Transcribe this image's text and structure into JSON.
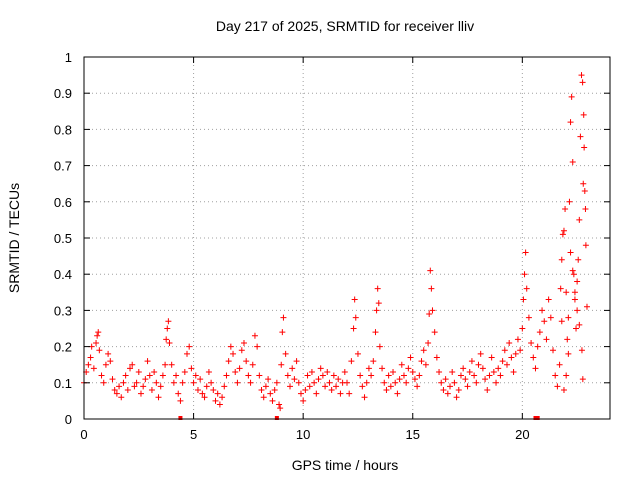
{
  "chart_data": {
    "type": "scatter",
    "title": "Day 217 of 2025, SRMTID for receiver lliv",
    "xlabel": "GPS time / hours",
    "ylabel": "SRMTID / TECUs",
    "xlim": [
      0,
      24
    ],
    "ylim": [
      0,
      1
    ],
    "x_ticks": [
      0,
      5,
      10,
      15,
      20
    ],
    "x_tick_labels": [
      "0",
      "5",
      "10",
      "15",
      "20"
    ],
    "y_ticks": [
      0,
      0.1,
      0.2,
      0.3,
      0.4,
      0.5,
      0.6,
      0.7,
      0.8,
      0.9,
      1
    ],
    "y_tick_labels": [
      "0",
      "0.1",
      "0.2",
      "0.3",
      "0.4",
      "0.5",
      "0.6",
      "0.7",
      "0.8",
      "0.9",
      "1"
    ],
    "grid": true,
    "marker": "+",
    "color": "#ff0000",
    "series": [
      {
        "name": "SRMTID",
        "points": [
          [
            0.0,
            0.1
          ],
          [
            0.1,
            0.13
          ],
          [
            0.2,
            0.15
          ],
          [
            0.3,
            0.17
          ],
          [
            0.35,
            0.2
          ],
          [
            0.45,
            0.14
          ],
          [
            0.55,
            0.21
          ],
          [
            0.6,
            0.23
          ],
          [
            0.65,
            0.24
          ],
          [
            0.7,
            0.19
          ],
          [
            0.8,
            0.12
          ],
          [
            0.9,
            0.1
          ],
          [
            1.0,
            0.15
          ],
          [
            1.1,
            0.18
          ],
          [
            1.2,
            0.16
          ],
          [
            1.3,
            0.11
          ],
          [
            1.4,
            0.08
          ],
          [
            1.5,
            0.07
          ],
          [
            1.6,
            0.09
          ],
          [
            1.7,
            0.06
          ],
          [
            1.8,
            0.1
          ],
          [
            1.9,
            0.12
          ],
          [
            2.0,
            0.08
          ],
          [
            2.1,
            0.14
          ],
          [
            2.2,
            0.15
          ],
          [
            2.3,
            0.09
          ],
          [
            2.4,
            0.1
          ],
          [
            2.5,
            0.13
          ],
          [
            2.6,
            0.07
          ],
          [
            2.7,
            0.09
          ],
          [
            2.8,
            0.11
          ],
          [
            2.9,
            0.16
          ],
          [
            3.0,
            0.12
          ],
          [
            3.1,
            0.08
          ],
          [
            3.2,
            0.13
          ],
          [
            3.3,
            0.1
          ],
          [
            3.4,
            0.06
          ],
          [
            3.5,
            0.09
          ],
          [
            3.6,
            0.12
          ],
          [
            3.7,
            0.15
          ],
          [
            3.75,
            0.22
          ],
          [
            3.8,
            0.25
          ],
          [
            3.85,
            0.27
          ],
          [
            3.9,
            0.21
          ],
          [
            4.0,
            0.15
          ],
          [
            4.1,
            0.1
          ],
          [
            4.2,
            0.12
          ],
          [
            4.3,
            0.07
          ],
          [
            4.4,
            0.05
          ],
          [
            4.5,
            0.1
          ],
          [
            4.6,
            0.13
          ],
          [
            4.7,
            0.18
          ],
          [
            4.8,
            0.2
          ],
          [
            4.9,
            0.14
          ],
          [
            5.0,
            0.1
          ],
          [
            5.1,
            0.12
          ],
          [
            5.2,
            0.08
          ],
          [
            5.3,
            0.11
          ],
          [
            5.4,
            0.07
          ],
          [
            5.5,
            0.06
          ],
          [
            5.6,
            0.09
          ],
          [
            5.7,
            0.13
          ],
          [
            5.8,
            0.1
          ],
          [
            5.9,
            0.08
          ],
          [
            6.0,
            0.05
          ],
          [
            6.1,
            0.07
          ],
          [
            6.2,
            0.04
          ],
          [
            6.3,
            0.06
          ],
          [
            6.4,
            0.09
          ],
          [
            6.5,
            0.12
          ],
          [
            6.6,
            0.16
          ],
          [
            6.7,
            0.2
          ],
          [
            6.8,
            0.18
          ],
          [
            6.9,
            0.13
          ],
          [
            7.0,
            0.1
          ],
          [
            7.1,
            0.14
          ],
          [
            7.2,
            0.19
          ],
          [
            7.3,
            0.21
          ],
          [
            7.4,
            0.16
          ],
          [
            7.5,
            0.12
          ],
          [
            7.6,
            0.1
          ],
          [
            7.7,
            0.15
          ],
          [
            7.8,
            0.23
          ],
          [
            7.9,
            0.2
          ],
          [
            8.0,
            0.12
          ],
          [
            8.1,
            0.08
          ],
          [
            8.2,
            0.06
          ],
          [
            8.3,
            0.09
          ],
          [
            8.4,
            0.11
          ],
          [
            8.5,
            0.07
          ],
          [
            8.6,
            0.05
          ],
          [
            8.7,
            0.08
          ],
          [
            8.8,
            0.1
          ],
          [
            8.9,
            0.04
          ],
          [
            8.95,
            0.03
          ],
          [
            9.0,
            0.15
          ],
          [
            9.05,
            0.24
          ],
          [
            9.1,
            0.28
          ],
          [
            9.2,
            0.18
          ],
          [
            9.3,
            0.12
          ],
          [
            9.4,
            0.09
          ],
          [
            9.5,
            0.14
          ],
          [
            9.6,
            0.11
          ],
          [
            9.7,
            0.16
          ],
          [
            9.8,
            0.1
          ],
          [
            9.9,
            0.07
          ],
          [
            10.0,
            0.05
          ],
          [
            10.1,
            0.08
          ],
          [
            10.2,
            0.12
          ],
          [
            10.3,
            0.09
          ],
          [
            10.4,
            0.13
          ],
          [
            10.5,
            0.1
          ],
          [
            10.6,
            0.07
          ],
          [
            10.7,
            0.11
          ],
          [
            10.8,
            0.14
          ],
          [
            10.9,
            0.12
          ],
          [
            11.0,
            0.09
          ],
          [
            11.1,
            0.13
          ],
          [
            11.2,
            0.1
          ],
          [
            11.3,
            0.08
          ],
          [
            11.4,
            0.12
          ],
          [
            11.5,
            0.09
          ],
          [
            11.6,
            0.11
          ],
          [
            11.7,
            0.07
          ],
          [
            11.8,
            0.1
          ],
          [
            11.9,
            0.13
          ],
          [
            12.0,
            0.1
          ],
          [
            12.1,
            0.07
          ],
          [
            12.2,
            0.16
          ],
          [
            12.3,
            0.25
          ],
          [
            12.35,
            0.33
          ],
          [
            12.4,
            0.28
          ],
          [
            12.5,
            0.18
          ],
          [
            12.6,
            0.12
          ],
          [
            12.7,
            0.09
          ],
          [
            12.8,
            0.06
          ],
          [
            12.9,
            0.1
          ],
          [
            13.0,
            0.14
          ],
          [
            13.1,
            0.12
          ],
          [
            13.2,
            0.16
          ],
          [
            13.3,
            0.24
          ],
          [
            13.35,
            0.3
          ],
          [
            13.4,
            0.36
          ],
          [
            13.45,
            0.32
          ],
          [
            13.5,
            0.2
          ],
          [
            13.6,
            0.14
          ],
          [
            13.7,
            0.1
          ],
          [
            13.8,
            0.08
          ],
          [
            13.9,
            0.12
          ],
          [
            14.0,
            0.09
          ],
          [
            14.1,
            0.13
          ],
          [
            14.2,
            0.1
          ],
          [
            14.3,
            0.07
          ],
          [
            14.4,
            0.11
          ],
          [
            14.5,
            0.15
          ],
          [
            14.6,
            0.12
          ],
          [
            14.7,
            0.1
          ],
          [
            14.8,
            0.14
          ],
          [
            14.9,
            0.17
          ],
          [
            15.0,
            0.13
          ],
          [
            15.1,
            0.11
          ],
          [
            15.2,
            0.09
          ],
          [
            15.3,
            0.12
          ],
          [
            15.4,
            0.16
          ],
          [
            15.5,
            0.19
          ],
          [
            15.6,
            0.15
          ],
          [
            15.7,
            0.21
          ],
          [
            15.75,
            0.29
          ],
          [
            15.8,
            0.41
          ],
          [
            15.85,
            0.36
          ],
          [
            15.9,
            0.3
          ],
          [
            16.0,
            0.24
          ],
          [
            16.1,
            0.17
          ],
          [
            16.2,
            0.13
          ],
          [
            16.3,
            0.1
          ],
          [
            16.4,
            0.08
          ],
          [
            16.5,
            0.11
          ],
          [
            16.6,
            0.07
          ],
          [
            16.7,
            0.09
          ],
          [
            16.8,
            0.13
          ],
          [
            16.9,
            0.1
          ],
          [
            17.0,
            0.06
          ],
          [
            17.1,
            0.08
          ],
          [
            17.2,
            0.12
          ],
          [
            17.3,
            0.14
          ],
          [
            17.4,
            0.11
          ],
          [
            17.5,
            0.09
          ],
          [
            17.6,
            0.13
          ],
          [
            17.7,
            0.16
          ],
          [
            17.8,
            0.12
          ],
          [
            17.9,
            0.1
          ],
          [
            18.0,
            0.15
          ],
          [
            18.1,
            0.18
          ],
          [
            18.2,
            0.14
          ],
          [
            18.3,
            0.11
          ],
          [
            18.4,
            0.08
          ],
          [
            18.5,
            0.12
          ],
          [
            18.6,
            0.17
          ],
          [
            18.7,
            0.13
          ],
          [
            18.8,
            0.1
          ],
          [
            18.9,
            0.14
          ],
          [
            19.0,
            0.12
          ],
          [
            19.1,
            0.16
          ],
          [
            19.2,
            0.19
          ],
          [
            19.3,
            0.15
          ],
          [
            19.4,
            0.21
          ],
          [
            19.5,
            0.17
          ],
          [
            19.6,
            0.13
          ],
          [
            19.7,
            0.18
          ],
          [
            19.8,
            0.22
          ],
          [
            19.9,
            0.19
          ],
          [
            20.0,
            0.25
          ],
          [
            20.05,
            0.33
          ],
          [
            20.1,
            0.4
          ],
          [
            20.15,
            0.46
          ],
          [
            20.2,
            0.36
          ],
          [
            20.3,
            0.28
          ],
          [
            20.4,
            0.21
          ],
          [
            20.5,
            0.17
          ],
          [
            20.6,
            0.14
          ],
          [
            20.7,
            0.2
          ],
          [
            20.8,
            0.24
          ],
          [
            20.9,
            0.3
          ],
          [
            21.0,
            0.27
          ],
          [
            21.1,
            0.22
          ],
          [
            21.2,
            0.33
          ],
          [
            21.3,
            0.28
          ],
          [
            21.4,
            0.19
          ],
          [
            21.5,
            0.12
          ],
          [
            21.6,
            0.09
          ],
          [
            21.7,
            0.15
          ],
          [
            21.75,
            0.36
          ],
          [
            21.8,
            0.44
          ],
          [
            21.85,
            0.51
          ],
          [
            21.9,
            0.52
          ],
          [
            21.95,
            0.58
          ],
          [
            22.0,
            0.35
          ],
          [
            22.05,
            0.22
          ],
          [
            22.1,
            0.28
          ],
          [
            22.15,
            0.6
          ],
          [
            22.2,
            0.82
          ],
          [
            22.25,
            0.89
          ],
          [
            22.3,
            0.71
          ],
          [
            22.35,
            0.4
          ],
          [
            22.4,
            0.33
          ],
          [
            22.45,
            0.25
          ],
          [
            22.5,
            0.3
          ],
          [
            22.55,
            0.44
          ],
          [
            22.6,
            0.55
          ],
          [
            22.65,
            0.78
          ],
          [
            22.7,
            0.95
          ],
          [
            22.75,
            0.93
          ],
          [
            22.8,
            0.84
          ],
          [
            22.85,
            0.63
          ],
          [
            22.9,
            0.48
          ],
          [
            22.95,
            0.31
          ],
          [
            22.78,
            0.65
          ],
          [
            22.82,
            0.75
          ],
          [
            22.88,
            0.58
          ],
          [
            22.72,
            0.19
          ],
          [
            22.76,
            0.11
          ],
          [
            22.6,
            0.26
          ],
          [
            22.5,
            0.38
          ],
          [
            22.4,
            0.35
          ],
          [
            22.3,
            0.41
          ],
          [
            22.2,
            0.46
          ],
          [
            22.1,
            0.18
          ],
          [
            22.0,
            0.12
          ],
          [
            21.9,
            0.08
          ],
          [
            21.8,
            0.27
          ]
        ]
      }
    ],
    "zero_markers_x": [
      4.4,
      8.8,
      20.6,
      20.7
    ]
  }
}
